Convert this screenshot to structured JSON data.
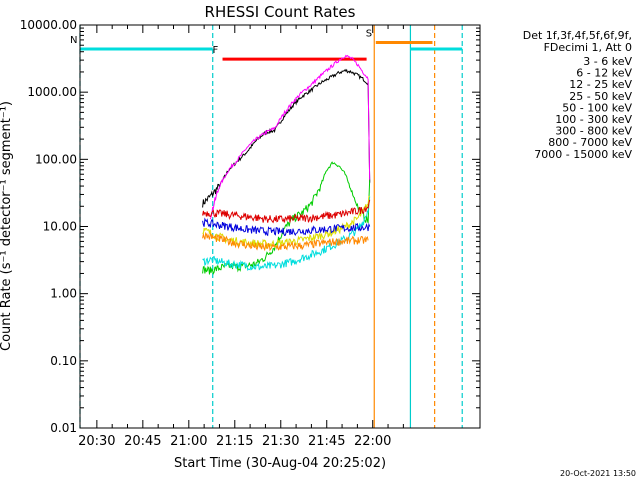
{
  "chart_data": {
    "type": "line",
    "title": "RHESSI Count Rates",
    "xlabel": "Start Time (30-Aug-04 20:25:02)",
    "ylabel": "Count Rate (s⁻¹ detector⁻¹ segment⁻¹)",
    "yscale": "log",
    "ylim": [
      0.01,
      10000
    ],
    "xlim_minutes_after_2025": [
      -0.5,
      97
    ],
    "xticks": [
      "20:30",
      "20:45",
      "21:00",
      "21:15",
      "21:30",
      "21:45",
      "22:00"
    ],
    "yticks": [
      "0.01",
      "0.10",
      "1.00",
      "10.00",
      "100.00",
      "1000.00",
      "10000.00"
    ],
    "timestamp": "20-Oct-2021 13:50",
    "legend_header": [
      "Det 1f,3f,4f,5f,6f,9f,",
      "FDecimi 1, Att 0"
    ],
    "series": [
      {
        "name": "3 - 6 keV",
        "color": "#000000",
        "x": [
          39.5,
          42,
          45,
          48,
          51,
          54,
          57,
          60,
          63,
          66,
          69,
          72,
          75,
          78,
          81,
          84,
          86,
          88,
          90,
          92,
          93.5,
          94
        ],
        "y": [
          22,
          28,
          40,
          70,
          95,
          130,
          190,
          250,
          270,
          430,
          640,
          870,
          1080,
          1370,
          1630,
          1950,
          2100,
          2000,
          1800,
          1550,
          1350,
          45
        ]
      },
      {
        "name": "6 - 12 keV",
        "color": "#ff00ff",
        "x": [
          42,
          45,
          48,
          51,
          54,
          57,
          60,
          63,
          66,
          69,
          72,
          75,
          78,
          81,
          84,
          86,
          88,
          90,
          92,
          93.5,
          94
        ],
        "y": [
          14,
          40,
          70,
          100,
          150,
          200,
          250,
          290,
          480,
          720,
          1000,
          1300,
          1750,
          2300,
          3000,
          3500,
          3200,
          2600,
          1950,
          1600,
          45
        ]
      },
      {
        "name": "12 - 25 keV",
        "color": "#00cc00",
        "x": [
          39.5,
          42,
          45,
          48,
          51,
          54,
          57,
          60,
          63,
          66,
          69,
          72,
          75,
          78,
          80,
          82,
          84,
          86,
          88,
          90,
          92,
          93.5,
          94
        ],
        "y": [
          2.3,
          2.2,
          2.4,
          2.6,
          2.5,
          2.6,
          2.8,
          3.5,
          5.0,
          9.0,
          13,
          16,
          22,
          40,
          70,
          90,
          80,
          60,
          35,
          20,
          14,
          12,
          50
        ]
      },
      {
        "name": "25 - 50 keV",
        "color": "#00dddd",
        "x": [
          39.5,
          42,
          45,
          48,
          51,
          54,
          57,
          60,
          63,
          66,
          69,
          72,
          75,
          78,
          81,
          84,
          87,
          90,
          92,
          93.5,
          94
        ],
        "y": [
          3.0,
          3.2,
          3.0,
          2.8,
          2.7,
          2.6,
          2.5,
          2.5,
          2.6,
          2.8,
          3.0,
          3.4,
          3.8,
          4.3,
          5.0,
          5.8,
          7.0,
          9.0,
          12,
          18,
          28
        ]
      },
      {
        "name": "50 - 100 keV",
        "color": "#dddd00",
        "x": [
          39.5,
          42,
          45,
          48,
          51,
          54,
          57,
          60,
          63,
          66,
          69,
          72,
          75,
          78,
          81,
          84,
          87,
          90,
          92,
          93.5,
          94
        ],
        "y": [
          9,
          8,
          7,
          6.3,
          6.0,
          5.8,
          5.6,
          5.5,
          5.5,
          5.7,
          6.0,
          6.3,
          6.8,
          7.3,
          8.0,
          9.0,
          10.5,
          13,
          17,
          22,
          28
        ]
      },
      {
        "name": "100 - 300 keV",
        "color": "#dd0000",
        "x": [
          39.5,
          42,
          45,
          48,
          51,
          54,
          57,
          60,
          63,
          66,
          69,
          72,
          75,
          78,
          81,
          84,
          87,
          90,
          92,
          93.5,
          94
        ],
        "y": [
          16,
          16,
          15.5,
          15,
          14.5,
          14,
          13.5,
          13,
          12.8,
          12.8,
          13,
          13.2,
          13.5,
          14,
          14.5,
          15,
          16,
          17,
          18,
          20,
          25
        ]
      },
      {
        "name": "300 - 800 keV",
        "color": "#0000dd",
        "x": [
          39.5,
          42,
          45,
          48,
          51,
          54,
          57,
          60,
          63,
          66,
          69,
          72,
          75,
          78,
          81,
          84,
          87,
          90,
          92,
          93.5,
          94
        ],
        "y": [
          11.5,
          11,
          10.5,
          10,
          9.5,
          9.0,
          8.7,
          8.5,
          8.4,
          8.4,
          8.5,
          8.6,
          8.8,
          9.0,
          9.2,
          9.4,
          9.5,
          9.6,
          9.7,
          9.8,
          10
        ]
      },
      {
        "name": "800 - 7000 keV",
        "color": "#ff8800",
        "x": [
          39.5,
          42,
          45,
          48,
          51,
          54,
          57,
          60,
          63,
          66,
          69,
          72,
          75,
          78,
          81,
          84,
          87,
          90,
          92,
          93.5
        ],
        "y": [
          7.5,
          7.0,
          6.5,
          6.0,
          5.6,
          5.3,
          5.0,
          4.9,
          4.9,
          5.0,
          5.1,
          5.2,
          5.4,
          5.6,
          5.8,
          6.0,
          6.1,
          6.2,
          6.2,
          6.2
        ]
      },
      {
        "name": "7000 - 15000 keV",
        "color": "#808000",
        "x": [],
        "y": []
      }
    ],
    "vertical_markers": [
      {
        "time_min": -0.5,
        "color": "#00cccc",
        "style": "dashed"
      },
      {
        "time_min": 42.8,
        "color": "#00cccc",
        "style": "dashed"
      },
      {
        "time_min": 95.5,
        "color": "#ff8800",
        "style": "solid"
      },
      {
        "time_min": 107.3,
        "color": "#00cccc",
        "style": "solid"
      },
      {
        "time_min": 115.2,
        "color": "#ff8800",
        "style": "dashed"
      },
      {
        "time_min": 124.2,
        "color": "#00cccc",
        "style": "dashed"
      }
    ],
    "flag_bars": [
      {
        "label": "N",
        "color": "#00dddd",
        "segments": [
          [
            -0.5,
            42.8
          ],
          [
            107.3,
            124.2
          ]
        ],
        "value": 4400
      },
      {
        "label": "F",
        "color": "#ff0000",
        "segments": [
          [
            46,
            93
          ]
        ],
        "value": 3100
      },
      {
        "label": "S",
        "color": "#ff8800",
        "segments": [
          [
            96,
            114.5
          ]
        ],
        "value": 5500
      }
    ]
  }
}
